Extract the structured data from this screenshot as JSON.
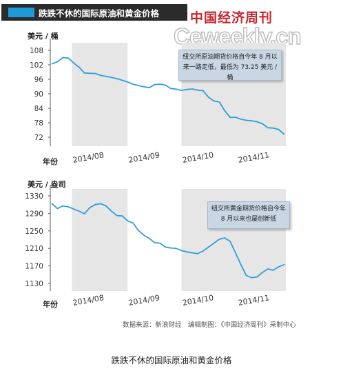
{
  "header": {
    "title": "跌跌不休的国际原油和黄金价格",
    "logo_cn": "中国经济周刊",
    "logo_en": "Ceweekly.cn"
  },
  "chart_data": [
    {
      "type": "line",
      "name": "oil",
      "ylabel": "美元 / 桶",
      "xlabel": "年份",
      "ylim": [
        72,
        108
      ],
      "yticks": [
        108,
        102,
        96,
        90,
        84,
        78,
        72
      ],
      "xticks": [
        "2014/08",
        "2014/09",
        "2014/10",
        "2014/11"
      ],
      "xlim": [
        "2014-07-20",
        "2014-11-28"
      ],
      "shaded_months": [
        "2014/08",
        "2014/10",
        "2014/11"
      ],
      "annotation": "纽交所原油期货价格自今年 8 月以来一路走低，最低为 73.25 美元 / 桶",
      "x": [
        "2014-07-21",
        "2014-07-24",
        "2014-07-27",
        "2014-07-30",
        "2014-08-02",
        "2014-08-05",
        "2014-08-08",
        "2014-08-11",
        "2014-08-14",
        "2014-08-17",
        "2014-08-20",
        "2014-08-23",
        "2014-08-26",
        "2014-08-29",
        "2014-09-01",
        "2014-09-04",
        "2014-09-07",
        "2014-09-10",
        "2014-09-13",
        "2014-09-16",
        "2014-09-19",
        "2014-09-22",
        "2014-09-25",
        "2014-09-28",
        "2014-10-01",
        "2014-10-04",
        "2014-10-07",
        "2014-10-10",
        "2014-10-13",
        "2014-10-16",
        "2014-10-19",
        "2014-10-22",
        "2014-10-25",
        "2014-10-28",
        "2014-10-31",
        "2014-11-03",
        "2014-11-06",
        "2014-11-09",
        "2014-11-12",
        "2014-11-15",
        "2014-11-18",
        "2014-11-21",
        "2014-11-24",
        "2014-11-27"
      ],
      "y": [
        102.4,
        103.3,
        105.0,
        104.8,
        102.8,
        101.0,
        98.6,
        98.5,
        98.4,
        97.6,
        97.2,
        96.8,
        96.3,
        95.6,
        94.9,
        94.0,
        93.4,
        92.9,
        92.5,
        93.8,
        94.0,
        93.6,
        92.2,
        91.9,
        91.4,
        91.8,
        92.0,
        91.5,
        91.3,
        88.6,
        87.0,
        86.6,
        83.0,
        80.2,
        80.3,
        79.5,
        79.0,
        78.8,
        78.4,
        77.6,
        75.9,
        75.8,
        75.2,
        73.25
      ]
    },
    {
      "type": "line",
      "name": "gold",
      "ylabel": "美元 / 盎司",
      "xlabel": "年份",
      "ylim": [
        1130,
        1330
      ],
      "yticks": [
        1330,
        1290,
        1250,
        1210,
        1170,
        1130
      ],
      "xticks": [
        "2014/08",
        "2014/09",
        "2014/10",
        "2014/11"
      ],
      "xlim": [
        "2014-07-20",
        "2014-11-28"
      ],
      "shaded_months": [
        "2014/08",
        "2014/10",
        "2014/11"
      ],
      "annotation": "纽交所黄金期货价格自今年 8 月以来也屡创新低",
      "x": [
        "2014-07-21",
        "2014-07-24",
        "2014-07-27",
        "2014-07-30",
        "2014-08-02",
        "2014-08-05",
        "2014-08-08",
        "2014-08-11",
        "2014-08-14",
        "2014-08-17",
        "2014-08-20",
        "2014-08-23",
        "2014-08-26",
        "2014-08-29",
        "2014-09-01",
        "2014-09-04",
        "2014-09-07",
        "2014-09-10",
        "2014-09-13",
        "2014-09-16",
        "2014-09-19",
        "2014-09-22",
        "2014-09-25",
        "2014-09-28",
        "2014-10-01",
        "2014-10-04",
        "2014-10-07",
        "2014-10-10",
        "2014-10-13",
        "2014-10-16",
        "2014-10-19",
        "2014-10-22",
        "2014-10-25",
        "2014-10-28",
        "2014-10-31",
        "2014-11-03",
        "2014-11-06",
        "2014-11-09",
        "2014-11-12",
        "2014-11-15",
        "2014-11-18",
        "2014-11-21",
        "2014-11-24",
        "2014-11-27"
      ],
      "y": [
        1312,
        1301,
        1307,
        1305,
        1300,
        1295,
        1289,
        1303,
        1310,
        1312,
        1307,
        1295,
        1285,
        1284,
        1273,
        1268,
        1251,
        1240,
        1233,
        1223,
        1222,
        1213,
        1211,
        1210,
        1205,
        1202,
        1200,
        1198,
        1204,
        1213,
        1222,
        1231,
        1234,
        1226,
        1200,
        1173,
        1148,
        1143,
        1145,
        1155,
        1163,
        1160,
        1168,
        1173
      ]
    }
  ],
  "source_note": "数据来源：新浪财经　编辑制图：《中国经济周刊》采制中心",
  "caption": "跌跌不休的国际原油和黄金价格"
}
